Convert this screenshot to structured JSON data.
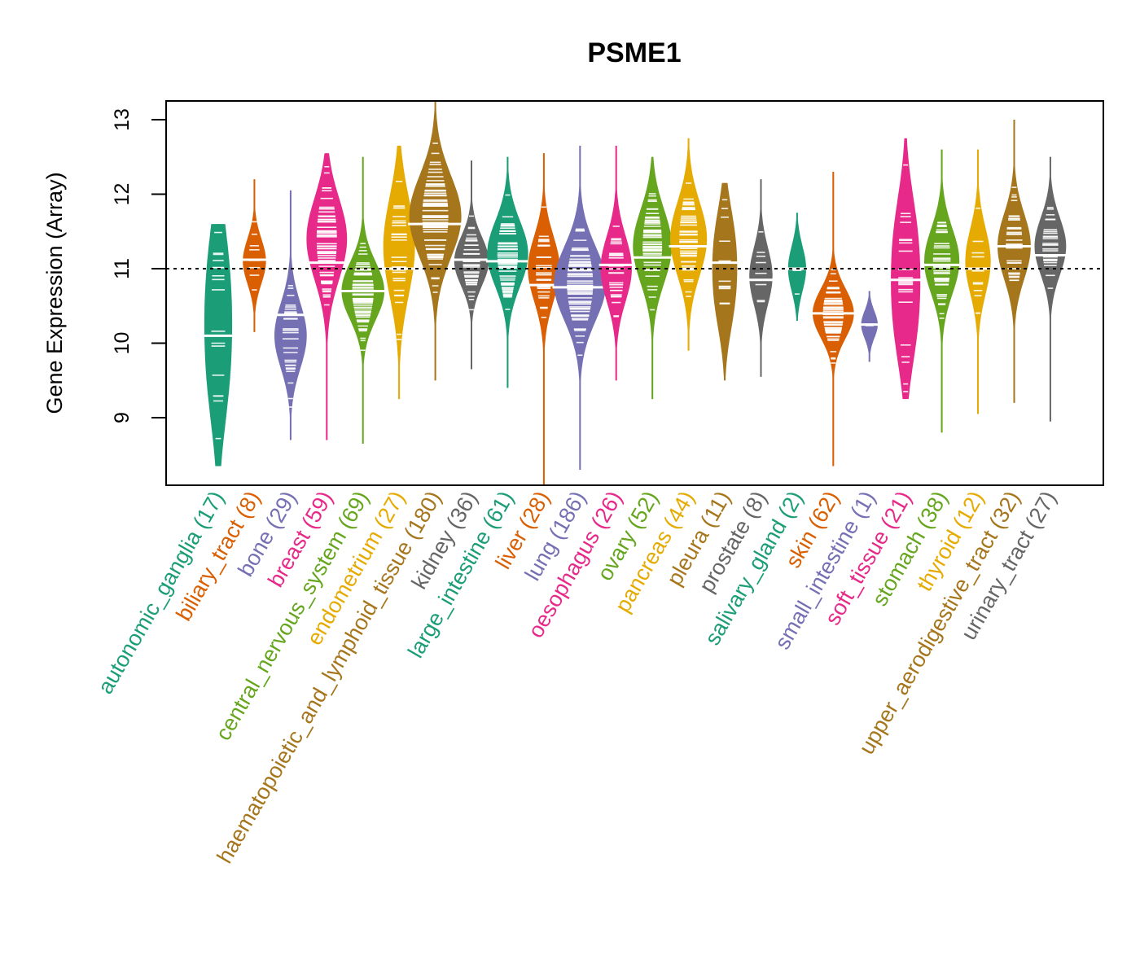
{
  "chart_data": {
    "type": "violin",
    "title": "PSME1",
    "xlabel": "",
    "ylabel": "Gene Expression (Array)",
    "ylim": [
      8.1,
      13.25
    ],
    "yticks": [
      9,
      10,
      11,
      12,
      13
    ],
    "reference_line": 11,
    "grid": false,
    "legend": "none",
    "categories": [
      {
        "name": "autonomic_ganglia",
        "n": 17,
        "label": "autonomic_ganglia (17)",
        "color": "#1B9E77",
        "median": 10.1,
        "min": 8.35,
        "max": 11.6,
        "q1": 9.5,
        "q3": 10.95,
        "modes": [
          10.9,
          9.6
        ]
      },
      {
        "name": "biliary_tract",
        "n": 8,
        "label": "biliary_tract (8)",
        "color": "#D95F02",
        "median": 11.12,
        "min": 10.15,
        "max": 12.2,
        "q1": 10.85,
        "q3": 11.4,
        "modes": [
          11.1
        ]
      },
      {
        "name": "bone",
        "n": 29,
        "label": "bone (29)",
        "color": "#7570B3",
        "median": 10.38,
        "min": 8.7,
        "max": 12.05,
        "q1": 10.0,
        "q3": 10.8,
        "modes": [
          10.1
        ]
      },
      {
        "name": "breast",
        "n": 59,
        "label": "breast (59)",
        "color": "#E7298A",
        "median": 11.08,
        "min": 8.7,
        "max": 12.55,
        "q1": 10.6,
        "q3": 11.6,
        "modes": [
          11.4
        ]
      },
      {
        "name": "central_nervous_system",
        "n": 69,
        "label": "central_nervous_system (69)",
        "color": "#66A61E",
        "median": 10.7,
        "min": 8.65,
        "max": 12.5,
        "q1": 10.3,
        "q3": 11.0,
        "modes": [
          10.7
        ]
      },
      {
        "name": "endometrium",
        "n": 27,
        "label": "endometrium (27)",
        "color": "#E6AB02",
        "median": 11.0,
        "min": 9.25,
        "max": 12.65,
        "q1": 10.3,
        "q3": 11.5,
        "modes": [
          11.3
        ]
      },
      {
        "name": "haematopoietic_and_lymphoid_tissue",
        "n": 180,
        "label": "haematopoietic_and_lymphoid_tissue (180)",
        "color": "#A6761D",
        "median": 11.6,
        "min": 9.5,
        "max": 13.25,
        "q1": 11.1,
        "q3": 12.1,
        "modes": [
          11.7
        ]
      },
      {
        "name": "kidney",
        "n": 36,
        "label": "kidney (36)",
        "color": "#666666",
        "median": 11.12,
        "min": 9.65,
        "max": 12.45,
        "q1": 10.8,
        "q3": 11.4,
        "modes": [
          11.1
        ]
      },
      {
        "name": "large_intestine",
        "n": 61,
        "label": "large_intestine (61)",
        "color": "#1B9E77",
        "median": 11.1,
        "min": 9.4,
        "max": 12.5,
        "q1": 10.7,
        "q3": 11.5,
        "modes": [
          11.2
        ]
      },
      {
        "name": "liver",
        "n": 28,
        "label": "liver (28)",
        "color": "#D95F02",
        "median": 10.78,
        "min": 8.1,
        "max": 12.55,
        "q1": 10.5,
        "q3": 11.3,
        "modes": [
          11.0
        ]
      },
      {
        "name": "lung",
        "n": 186,
        "label": "lung (186)",
        "color": "#7570B3",
        "median": 10.75,
        "min": 8.3,
        "max": 12.65,
        "q1": 10.3,
        "q3": 11.2,
        "modes": [
          10.8
        ]
      },
      {
        "name": "oesophagus",
        "n": 26,
        "label": "oesophagus (26)",
        "color": "#E7298A",
        "median": 11.05,
        "min": 9.5,
        "max": 12.65,
        "q1": 10.6,
        "q3": 11.4,
        "modes": [
          11.0
        ]
      },
      {
        "name": "ovary",
        "n": 52,
        "label": "ovary (52)",
        "color": "#66A61E",
        "median": 11.15,
        "min": 9.25,
        "max": 12.5,
        "q1": 10.7,
        "q3": 11.6,
        "modes": [
          11.3
        ]
      },
      {
        "name": "pancreas",
        "n": 44,
        "label": "pancreas (44)",
        "color": "#E6AB02",
        "median": 11.3,
        "min": 9.9,
        "max": 12.75,
        "q1": 10.8,
        "q3": 11.7,
        "modes": [
          11.4
        ]
      },
      {
        "name": "pleura",
        "n": 11,
        "label": "pleura (11)",
        "color": "#A6761D",
        "median": 11.08,
        "min": 9.5,
        "max": 12.15,
        "q1": 10.5,
        "q3": 11.4,
        "modes": [
          11.4,
          10.6
        ]
      },
      {
        "name": "prostate",
        "n": 8,
        "label": "prostate (8)",
        "color": "#666666",
        "median": 10.85,
        "min": 9.55,
        "max": 12.2,
        "q1": 10.5,
        "q3": 11.2,
        "modes": [
          10.9
        ]
      },
      {
        "name": "salivary_gland",
        "n": 2,
        "label": "salivary_gland (2)",
        "color": "#1B9E77",
        "median": 11.0,
        "min": 10.3,
        "max": 11.75,
        "q1": 10.75,
        "q3": 11.3,
        "modes": [
          11.0
        ]
      },
      {
        "name": "skin",
        "n": 62,
        "label": "skin (62)",
        "color": "#D95F02",
        "median": 10.4,
        "min": 8.35,
        "max": 12.3,
        "q1": 10.1,
        "q3": 10.7,
        "modes": [
          10.4
        ]
      },
      {
        "name": "small_intestine",
        "n": 1,
        "label": "small_intestine (1)",
        "color": "#7570B3",
        "median": 10.25,
        "min": 9.75,
        "max": 10.7,
        "q1": 10.25,
        "q3": 10.25,
        "modes": [
          10.25
        ]
      },
      {
        "name": "soft_tissue",
        "n": 21,
        "label": "soft_tissue (21)",
        "color": "#E7298A",
        "median": 10.85,
        "min": 9.25,
        "max": 12.75,
        "q1": 10.2,
        "q3": 11.4,
        "modes": [
          11.4,
          10.3
        ]
      },
      {
        "name": "stomach",
        "n": 38,
        "label": "stomach (38)",
        "color": "#66A61E",
        "median": 11.05,
        "min": 8.8,
        "max": 12.6,
        "q1": 10.7,
        "q3": 11.5,
        "modes": [
          11.1
        ]
      },
      {
        "name": "thyroid",
        "n": 12,
        "label": "thyroid (12)",
        "color": "#E6AB02",
        "median": 11.0,
        "min": 9.05,
        "max": 12.6,
        "q1": 10.6,
        "q3": 11.4,
        "modes": [
          11.1
        ]
      },
      {
        "name": "upper_aerodigestive_tract",
        "n": 32,
        "label": "upper_aerodigestive_tract (32)",
        "color": "#A6761D",
        "median": 11.3,
        "min": 9.2,
        "max": 13.0,
        "q1": 10.9,
        "q3": 11.7,
        "modes": [
          11.3
        ]
      },
      {
        "name": "urinary_tract",
        "n": 27,
        "label": "urinary_tract (27)",
        "color": "#666666",
        "median": 11.18,
        "min": 8.95,
        "max": 12.5,
        "q1": 10.8,
        "q3": 11.5,
        "modes": [
          11.3
        ]
      }
    ]
  }
}
